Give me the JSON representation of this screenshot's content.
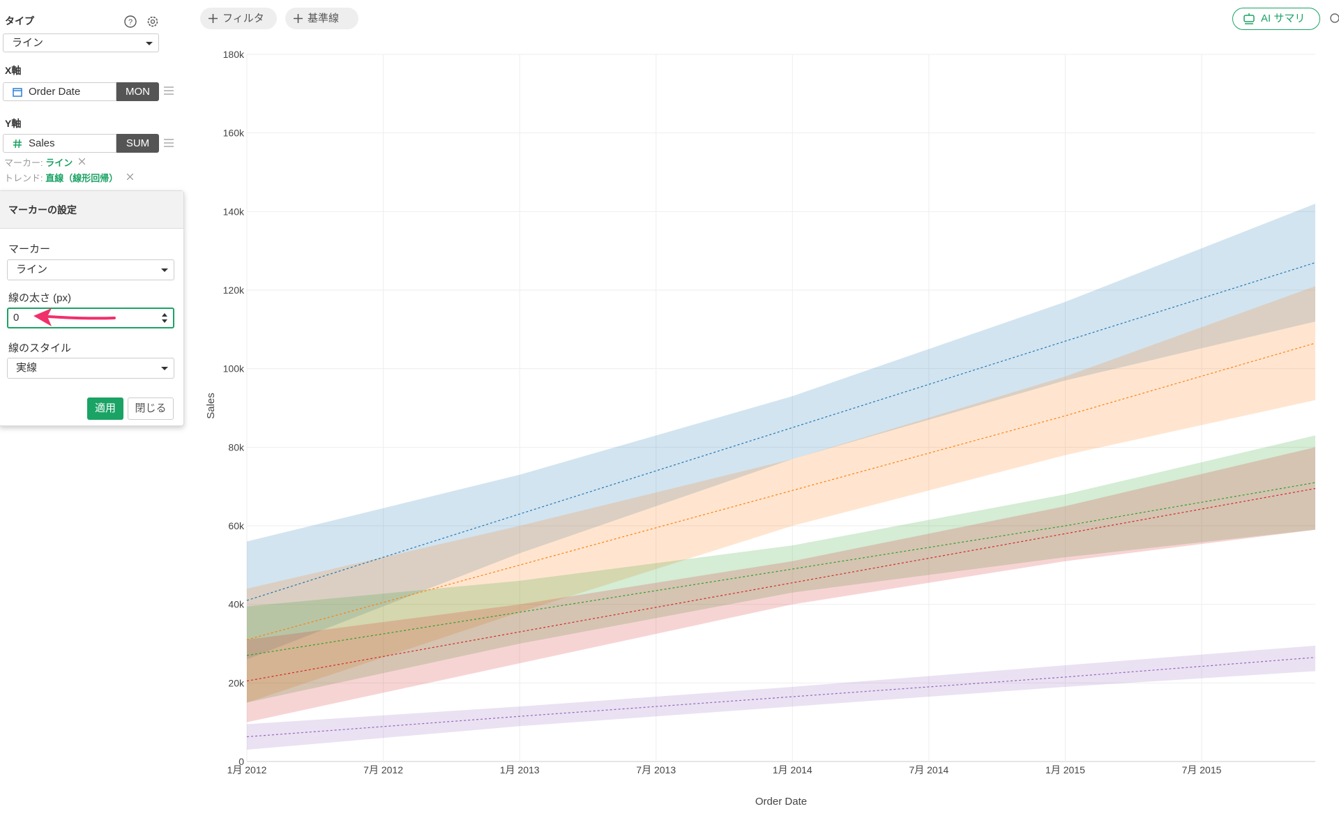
{
  "sidebar": {
    "type_label": "タイプ",
    "type_value": "ライン",
    "x_axis_label": "X軸",
    "x_field": "Order Date",
    "x_agg": "MON",
    "y_axis_label": "Y軸",
    "y_field": "Sales",
    "y_agg": "SUM",
    "marker_prefix": "マーカー:",
    "marker_value": "ライン",
    "trend_prefix": "トレンド:",
    "trend_value": "直線（線形回帰）"
  },
  "marker_popup": {
    "title": "マーカーの設定",
    "marker_label": "マーカー",
    "marker_value": "ライン",
    "width_label": "線の太さ (px)",
    "width_value": "0",
    "style_label": "線のスタイル",
    "style_value": "実線",
    "apply": "適用",
    "close": "閉じる"
  },
  "toolbar": {
    "filter": "フィルタ",
    "reference_line": "基準線",
    "ai_summary": "AI サマリ"
  },
  "chart_data": {
    "type": "line",
    "x_label": "Order Date",
    "y_label": "Sales",
    "x": [
      "2012-01",
      "2013-01",
      "2014-01",
      "2015-01",
      "2015-12"
    ],
    "xlim": [
      "2012-01",
      "2015-12"
    ],
    "xticks": [
      {
        "value": "2012-01",
        "label": "1月 2012"
      },
      {
        "value": "2012-07",
        "label": "7月 2012"
      },
      {
        "value": "2013-01",
        "label": "1月 2013"
      },
      {
        "value": "2013-07",
        "label": "7月 2013"
      },
      {
        "value": "2014-01",
        "label": "1月 2014"
      },
      {
        "value": "2014-07",
        "label": "7月 2014"
      },
      {
        "value": "2015-01",
        "label": "1月 2015"
      },
      {
        "value": "2015-07",
        "label": "7月 2015"
      }
    ],
    "ylim": [
      0,
      180000
    ],
    "yticks": [
      0,
      {
        "value": 20000,
        "label": "20k"
      },
      {
        "value": 40000,
        "label": "40k"
      },
      {
        "value": 60000,
        "label": "60k"
      },
      {
        "value": 80000,
        "label": "80k"
      },
      {
        "value": 100000,
        "label": "100k"
      },
      {
        "value": 120000,
        "label": "120k"
      },
      {
        "value": 140000,
        "label": "140k"
      },
      {
        "value": 160000,
        "label": "160k"
      },
      {
        "value": 180000,
        "label": "180k"
      }
    ],
    "grid": true,
    "series": [
      {
        "color": "#1f77b4",
        "values": [
          41000,
          63000,
          85000,
          107000,
          127000
        ],
        "upper": [
          56000,
          73000,
          93000,
          117000,
          142000
        ],
        "lower": [
          26000,
          53000,
          77000,
          97000,
          112000
        ]
      },
      {
        "color": "#ff7f0e",
        "values": [
          31000,
          50000,
          69000,
          88000,
          106500
        ],
        "upper": [
          44000,
          60000,
          77000,
          98000,
          121000
        ],
        "lower": [
          15000,
          38000,
          60000,
          78000,
          92000
        ]
      },
      {
        "color": "#2ca02c",
        "values": [
          27000,
          38000,
          49000,
          60000,
          71000
        ],
        "upper": [
          39500,
          46000,
          55000,
          68000,
          83000
        ],
        "lower": [
          15000,
          30000,
          43000,
          52000,
          59000
        ]
      },
      {
        "color": "#d62728",
        "values": [
          20500,
          33000,
          45500,
          58000,
          69500
        ],
        "upper": [
          31000,
          40000,
          51000,
          65000,
          80000
        ],
        "lower": [
          10000,
          25000,
          40000,
          51000,
          59000
        ]
      },
      {
        "color": "#9467bd",
        "values": [
          6300,
          11500,
          16500,
          21500,
          26500
        ],
        "upper": [
          9500,
          14000,
          19000,
          24500,
          29500
        ],
        "lower": [
          3000,
          9000,
          14000,
          19000,
          23000
        ]
      }
    ]
  }
}
